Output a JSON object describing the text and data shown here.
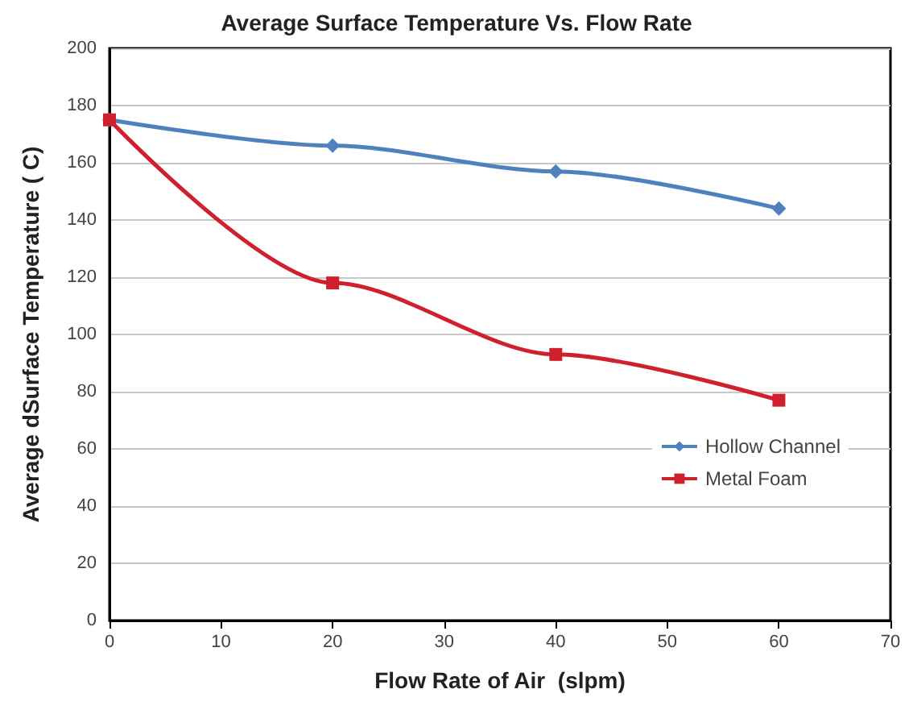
{
  "chart_data": {
    "type": "line",
    "title": "Average Surface Temperature Vs. Flow Rate",
    "xlabel": "Flow Rate of Air  (slpm)",
    "ylabel": "Average dSurface Temperature ( C)",
    "x": [
      0,
      20,
      40,
      60
    ],
    "series": [
      {
        "name": "Hollow Channel",
        "color": "#4f81bd",
        "marker": "diamond",
        "values": [
          175,
          166,
          157,
          144
        ]
      },
      {
        "name": "Metal Foam",
        "color": "#d0202e",
        "marker": "square",
        "values": [
          175,
          118,
          93,
          77
        ]
      }
    ],
    "xlim": [
      0,
      70
    ],
    "xticks": [
      0,
      10,
      20,
      30,
      40,
      50,
      60,
      70
    ],
    "ylim": [
      0,
      200
    ],
    "yticks": [
      0,
      20,
      40,
      60,
      80,
      100,
      120,
      140,
      160,
      180,
      200
    ],
    "grid": "y",
    "legend": "bottom right",
    "line_style": "solid"
  }
}
